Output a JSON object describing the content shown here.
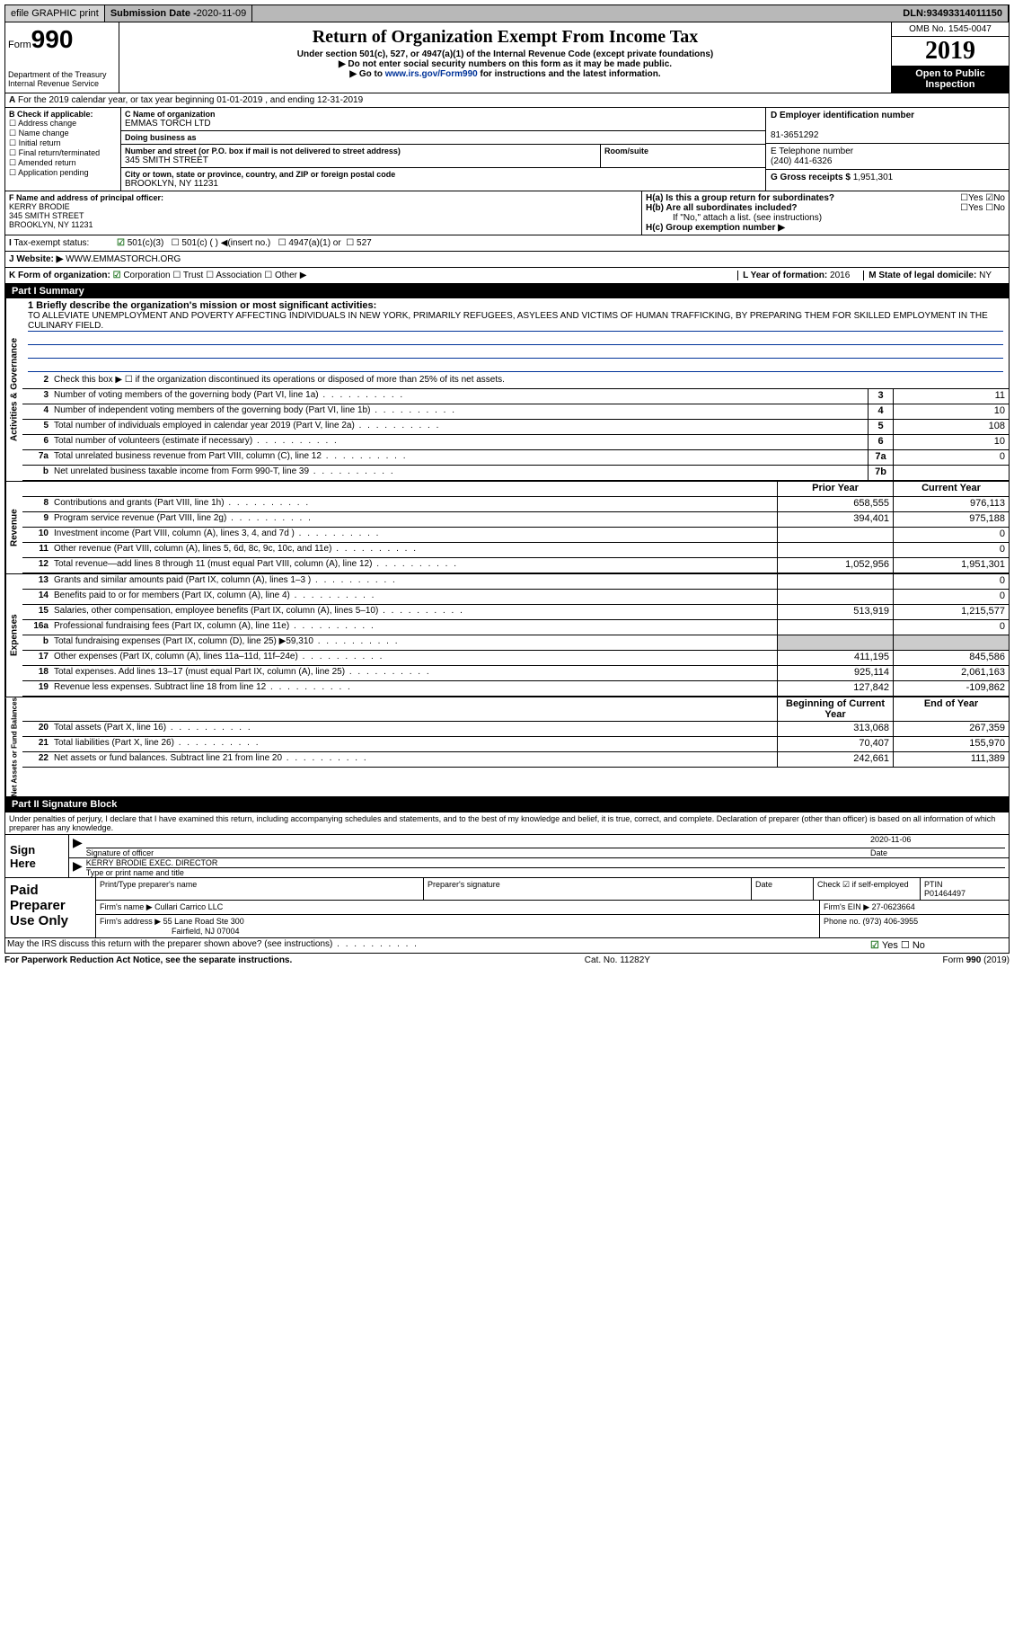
{
  "topbar": {
    "efile": "efile GRAPHIC print",
    "submission_label": "Submission Date - ",
    "submission_date": "2020-11-09",
    "dln_label": "DLN: ",
    "dln": "93493314011150"
  },
  "header": {
    "form": "Form",
    "formnum": "990",
    "dept": "Department of the Treasury\nInternal Revenue Service",
    "title": "Return of Organization Exempt From Income Tax",
    "sub1": "Under section 501(c), 527, or 4947(a)(1) of the Internal Revenue Code (except private foundations)",
    "sub2": "Do not enter social security numbers on this form as it may be made public.",
    "sub3_pre": "Go to ",
    "sub3_link": "www.irs.gov/Form990",
    "sub3_post": " for instructions and the latest information.",
    "omb": "OMB No. 1545-0047",
    "year": "2019",
    "open": "Open to Public Inspection"
  },
  "row_a": "For the 2019 calendar year, or tax year beginning 01-01-2019    , and ending 12-31-2019",
  "section_b": {
    "hdr": "B Check if applicable:",
    "opts": [
      "Address change",
      "Name change",
      "Initial return",
      "Final return/terminated",
      "Amended return",
      "Application pending"
    ]
  },
  "section_c": {
    "name_lbl": "C Name of organization",
    "name": "EMMAS TORCH LTD",
    "dba_lbl": "Doing business as",
    "addr_lbl": "Number and street (or P.O. box if mail is not delivered to street address)",
    "room_lbl": "Room/suite",
    "addr": "345 SMITH STREET",
    "city_lbl": "City or town, state or province, country, and ZIP or foreign postal code",
    "city": "BROOKLYN, NY  11231"
  },
  "section_d": {
    "lbl": "D Employer identification number",
    "val": "81-3651292"
  },
  "section_e": {
    "lbl": "E Telephone number",
    "val": "(240) 441-6326"
  },
  "section_g": {
    "lbl": "G Gross receipts $ ",
    "val": "1,951,301"
  },
  "section_f": {
    "lbl": "F  Name and address of principal officer:",
    "name": "KERRY BRODIE",
    "addr1": "345 SMITH STREET",
    "addr2": "BROOKLYN, NY  11231"
  },
  "section_h": {
    "ha": "H(a)  Is this a group return for subordinates?",
    "hb": "H(b)  Are all subordinates included?",
    "hb_note": "If \"No,\" attach a list. (see instructions)",
    "hc": "H(c)  Group exemption number ▶"
  },
  "row_i": {
    "lbl": "Tax-exempt status:",
    "c3": "501(c)(3)",
    "c": "501(c) (  ) ◀(insert no.)",
    "a1": "4947(a)(1) or",
    "527": "527"
  },
  "row_j": {
    "lbl": "J   Website: ▶",
    "val": "WWW.EMMASTORCH.ORG"
  },
  "row_k": {
    "lbl": "K Form of organization:",
    "corp": "Corporation",
    "trust": "Trust",
    "assoc": "Association",
    "other": "Other ▶",
    "l_lbl": "L Year of formation: ",
    "l_val": "2016",
    "m_lbl": "M State of legal domicile: ",
    "m_val": "NY"
  },
  "part1": {
    "hdr": "Part I     Summary",
    "l1_lbl": "1  Briefly describe the organization's mission or most significant activities:",
    "l1_txt": "TO ALLEVIATE UNEMPLOYMENT AND POVERTY AFFECTING INDIVIDUALS IN NEW YORK, PRIMARILY REFUGEES, ASYLEES AND VICTIMS OF HUMAN TRAFFICKING, BY PREPARING THEM FOR SKILLED EMPLOYMENT IN THE CULINARY FIELD.",
    "l2": "Check this box ▶ ☐  if the organization discontinued its operations or disposed of more than 25% of its net assets.",
    "sect_act": "Activities & Governance",
    "sect_rev": "Revenue",
    "sect_exp": "Expenses",
    "sect_net": "Net Assets or Fund Balances",
    "prior_hdr": "Prior Year",
    "curr_hdr": "Current Year",
    "boy_hdr": "Beginning of Current Year",
    "eoy_hdr": "End of Year",
    "lines_act": [
      {
        "n": "3",
        "t": "Number of voting members of the governing body (Part VI, line 1a)",
        "b": "3",
        "v": "11"
      },
      {
        "n": "4",
        "t": "Number of independent voting members of the governing body (Part VI, line 1b)",
        "b": "4",
        "v": "10"
      },
      {
        "n": "5",
        "t": "Total number of individuals employed in calendar year 2019 (Part V, line 2a)",
        "b": "5",
        "v": "108"
      },
      {
        "n": "6",
        "t": "Total number of volunteers (estimate if necessary)",
        "b": "6",
        "v": "10"
      },
      {
        "n": "7a",
        "t": "Total unrelated business revenue from Part VIII, column (C), line 12",
        "b": "7a",
        "v": "0"
      },
      {
        "n": "b",
        "t": "Net unrelated business taxable income from Form 990-T, line 39",
        "b": "7b",
        "v": ""
      }
    ],
    "lines_rev": [
      {
        "n": "8",
        "t": "Contributions and grants (Part VIII, line 1h)",
        "py": "658,555",
        "cy": "976,113"
      },
      {
        "n": "9",
        "t": "Program service revenue (Part VIII, line 2g)",
        "py": "394,401",
        "cy": "975,188"
      },
      {
        "n": "10",
        "t": "Investment income (Part VIII, column (A), lines 3, 4, and 7d )",
        "py": "",
        "cy": "0"
      },
      {
        "n": "11",
        "t": "Other revenue (Part VIII, column (A), lines 5, 6d, 8c, 9c, 10c, and 11e)",
        "py": "",
        "cy": "0"
      },
      {
        "n": "12",
        "t": "Total revenue—add lines 8 through 11 (must equal Part VIII, column (A), line 12)",
        "py": "1,052,956",
        "cy": "1,951,301"
      }
    ],
    "lines_exp": [
      {
        "n": "13",
        "t": "Grants and similar amounts paid (Part IX, column (A), lines 1–3 )",
        "py": "",
        "cy": "0"
      },
      {
        "n": "14",
        "t": "Benefits paid to or for members (Part IX, column (A), line 4)",
        "py": "",
        "cy": "0"
      },
      {
        "n": "15",
        "t": "Salaries, other compensation, employee benefits (Part IX, column (A), lines 5–10)",
        "py": "513,919",
        "cy": "1,215,577"
      },
      {
        "n": "16a",
        "t": "Professional fundraising fees (Part IX, column (A), line 11e)",
        "py": "",
        "cy": "0"
      },
      {
        "n": "b",
        "t": "Total fundraising expenses (Part IX, column (D), line 25) ▶59,310",
        "py": "GREY",
        "cy": "GREY"
      },
      {
        "n": "17",
        "t": "Other expenses (Part IX, column (A), lines 11a–11d, 11f–24e)",
        "py": "411,195",
        "cy": "845,586"
      },
      {
        "n": "18",
        "t": "Total expenses. Add lines 13–17 (must equal Part IX, column (A), line 25)",
        "py": "925,114",
        "cy": "2,061,163"
      },
      {
        "n": "19",
        "t": "Revenue less expenses. Subtract line 18 from line 12",
        "py": "127,842",
        "cy": "-109,862"
      }
    ],
    "lines_net": [
      {
        "n": "20",
        "t": "Total assets (Part X, line 16)",
        "py": "313,068",
        "cy": "267,359"
      },
      {
        "n": "21",
        "t": "Total liabilities (Part X, line 26)",
        "py": "70,407",
        "cy": "155,970"
      },
      {
        "n": "22",
        "t": "Net assets or fund balances. Subtract line 21 from line 20",
        "py": "242,661",
        "cy": "111,389"
      }
    ]
  },
  "part2": {
    "hdr": "Part II    Signature Block",
    "decl": "Under penalties of perjury, I declare that I have examined this return, including accompanying schedules and statements, and to the best of my knowledge and belief, it is true, correct, and complete. Declaration of preparer (other than officer) is based on all information of which preparer has any knowledge.",
    "sign_here": "Sign Here",
    "sig_officer": "Signature of officer",
    "date": "Date",
    "sig_date": "2020-11-06",
    "name_title": "KERRY BRODIE  EXEC. DIRECTOR",
    "name_title_lbl": "Type or print name and title",
    "paid": "Paid Preparer Use Only",
    "prep_name_lbl": "Print/Type preparer's name",
    "prep_sig_lbl": "Preparer's signature",
    "prep_date_lbl": "Date",
    "self_emp": "Check ☑ if self-employed",
    "ptin_lbl": "PTIN",
    "ptin": "P01464497",
    "firm_name_lbl": "Firm's name    ▶",
    "firm_name": "Cullari Carrico LLC",
    "firm_ein_lbl": "Firm's EIN ▶",
    "firm_ein": "27-0623664",
    "firm_addr_lbl": "Firm's address ▶",
    "firm_addr1": "55 Lane Road Ste 300",
    "firm_addr2": "Fairfield, NJ  07004",
    "phone_lbl": "Phone no. ",
    "phone": "(973) 406-3955",
    "discuss": "May the IRS discuss this return with the preparer shown above? (see instructions)",
    "yes": "Yes",
    "no": "No"
  },
  "footer": {
    "left": "For Paperwork Reduction Act Notice, see the separate instructions.",
    "mid": "Cat. No. 11282Y",
    "right": "Form 990 (2019)"
  }
}
